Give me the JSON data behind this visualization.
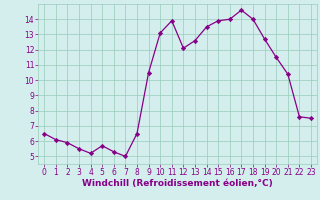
{
  "x": [
    0,
    1,
    2,
    3,
    4,
    5,
    6,
    7,
    8,
    9,
    10,
    11,
    12,
    13,
    14,
    15,
    16,
    17,
    18,
    19,
    20,
    21,
    22,
    23
  ],
  "y": [
    6.5,
    6.1,
    5.9,
    5.5,
    5.2,
    5.7,
    5.3,
    5.0,
    6.5,
    10.5,
    13.1,
    13.9,
    12.1,
    12.6,
    13.5,
    13.9,
    14.0,
    14.6,
    14.0,
    12.7,
    11.5,
    10.4,
    7.6,
    7.5
  ],
  "line_color": "#880088",
  "marker": "D",
  "marker_size": 2.2,
  "bg_color": "#d4eeee",
  "grid_color": "#99ccbb",
  "xlabel": "Windchill (Refroidissement éolien,°C)",
  "xlim": [
    -0.5,
    23.5
  ],
  "ylim": [
    4.5,
    15.0
  ],
  "yticks": [
    5,
    6,
    7,
    8,
    9,
    10,
    11,
    12,
    13,
    14
  ],
  "xticks": [
    0,
    1,
    2,
    3,
    4,
    5,
    6,
    7,
    8,
    9,
    10,
    11,
    12,
    13,
    14,
    15,
    16,
    17,
    18,
    19,
    20,
    21,
    22,
    23
  ],
  "tick_color": "#880088",
  "label_color": "#880088",
  "tick_fontsize": 5.5,
  "xlabel_fontsize": 6.5,
  "line_width": 0.9
}
